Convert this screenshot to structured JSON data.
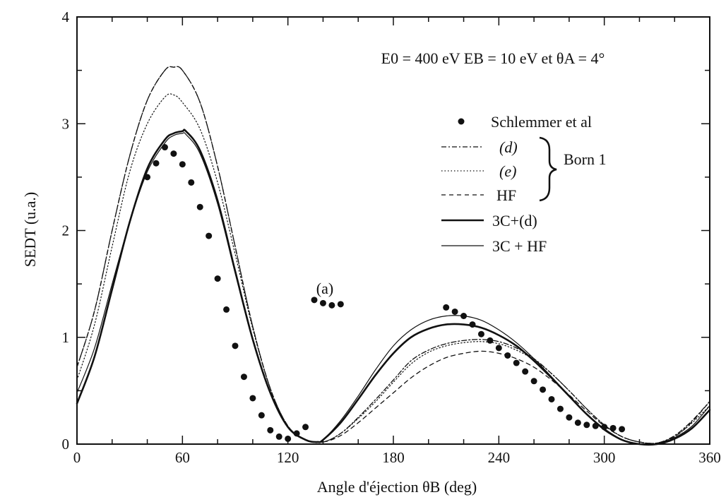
{
  "chart_data": {
    "type": "line",
    "title": "",
    "xlabel": "Angle d'éjection  θB (deg)",
    "ylabel": "SEDT (u.a.)",
    "xlim": [
      0,
      360
    ],
    "ylim": [
      0,
      4
    ],
    "xticks": [
      0,
      60,
      120,
      180,
      240,
      300,
      360
    ],
    "xtick_labels": [
      "0",
      "60",
      "120",
      "180",
      "240",
      "300",
      "360"
    ],
    "yticks": [
      0,
      1,
      2,
      3,
      4
    ],
    "ytick_labels": [
      "0",
      "1",
      "2",
      "3",
      "4"
    ],
    "grid": false,
    "legend_position": "top-right",
    "annotations": {
      "conditions": "E0 = 400 eV   EB = 10 eV   et   θA =  4°",
      "panel": "(a)",
      "bracket_label": "Born 1"
    },
    "legend_labels": {
      "exp": "Schlemmer et al",
      "d": "(d)",
      "e": "(e)",
      "hf": "HF",
      "c3d": "3C+(d)",
      "c3hf": "3C + HF"
    },
    "series": [
      {
        "name": "Schlemmer et al",
        "style": "markers",
        "x": [
          40,
          45,
          50,
          55,
          60,
          65,
          70,
          75,
          80,
          85,
          90,
          95,
          100,
          105,
          110,
          115,
          120,
          125,
          130,
          135,
          140,
          145,
          150,
          210,
          215,
          220,
          225,
          230,
          235,
          240,
          245,
          250,
          255,
          260,
          265,
          270,
          275,
          280,
          285,
          290,
          295,
          300,
          305,
          310
        ],
        "y": [
          2.5,
          2.63,
          2.78,
          2.72,
          2.62,
          2.45,
          2.22,
          1.95,
          1.55,
          1.26,
          0.92,
          0.63,
          0.43,
          0.27,
          0.13,
          0.07,
          0.05,
          0.1,
          0.16,
          1.35,
          1.32,
          1.3,
          1.31,
          1.28,
          1.24,
          1.2,
          1.12,
          1.03,
          0.97,
          0.9,
          0.83,
          0.76,
          0.68,
          0.59,
          0.51,
          0.42,
          0.33,
          0.25,
          0.2,
          0.18,
          0.17,
          0.16,
          0.15,
          0.14
        ]
      },
      {
        "name": "(d)",
        "style": "dash-dot",
        "x": [
          0,
          10,
          20,
          30,
          40,
          50,
          55,
          60,
          70,
          80,
          90,
          100,
          110,
          120,
          130,
          140,
          150,
          160,
          170,
          180,
          190,
          200,
          210,
          220,
          230,
          240,
          250,
          260,
          270,
          280,
          290,
          300,
          310,
          320,
          330,
          340,
          350,
          360
        ],
        "y": [
          0.72,
          1.25,
          2.0,
          2.7,
          3.22,
          3.5,
          3.53,
          3.5,
          3.2,
          2.6,
          1.85,
          1.1,
          0.52,
          0.17,
          0.04,
          0.02,
          0.1,
          0.25,
          0.42,
          0.6,
          0.78,
          0.88,
          0.94,
          0.97,
          0.98,
          0.96,
          0.9,
          0.8,
          0.66,
          0.5,
          0.33,
          0.18,
          0.07,
          0.02,
          0.01,
          0.08,
          0.22,
          0.4
        ]
      },
      {
        "name": "(e)",
        "style": "dotted",
        "x": [
          0,
          10,
          20,
          30,
          40,
          50,
          55,
          60,
          70,
          80,
          90,
          100,
          110,
          120,
          130,
          140,
          150,
          160,
          170,
          180,
          190,
          200,
          210,
          220,
          230,
          240,
          250,
          260,
          270,
          280,
          290,
          300,
          310,
          320,
          330,
          340,
          350,
          360
        ],
        "y": [
          0.6,
          1.12,
          1.85,
          2.55,
          3.0,
          3.25,
          3.27,
          3.2,
          2.95,
          2.45,
          1.78,
          1.08,
          0.52,
          0.17,
          0.04,
          0.02,
          0.1,
          0.24,
          0.4,
          0.58,
          0.75,
          0.86,
          0.92,
          0.95,
          0.96,
          0.94,
          0.88,
          0.79,
          0.66,
          0.5,
          0.33,
          0.18,
          0.07,
          0.02,
          0.01,
          0.07,
          0.2,
          0.36
        ]
      },
      {
        "name": "HF",
        "style": "dashed",
        "x": [
          0,
          10,
          20,
          30,
          40,
          50,
          55,
          60,
          70,
          80,
          90,
          100,
          110,
          120,
          130,
          140,
          150,
          160,
          170,
          180,
          190,
          200,
          210,
          220,
          230,
          240,
          250,
          260,
          270,
          280,
          290,
          300,
          310,
          320,
          330,
          340,
          350,
          360
        ],
        "y": [
          0.72,
          1.25,
          2.0,
          2.7,
          3.22,
          3.5,
          3.53,
          3.5,
          3.2,
          2.6,
          1.85,
          1.1,
          0.52,
          0.17,
          0.04,
          0.02,
          0.08,
          0.2,
          0.34,
          0.48,
          0.62,
          0.73,
          0.81,
          0.85,
          0.87,
          0.85,
          0.8,
          0.72,
          0.6,
          0.46,
          0.31,
          0.17,
          0.07,
          0.02,
          0.01,
          0.07,
          0.21,
          0.4
        ]
      },
      {
        "name": "3C+(d)",
        "style": "solid-thick",
        "x": [
          0,
          10,
          20,
          30,
          40,
          50,
          55,
          60,
          62,
          70,
          80,
          90,
          100,
          110,
          120,
          130,
          137,
          140,
          150,
          160,
          170,
          180,
          190,
          200,
          210,
          220,
          230,
          240,
          250,
          260,
          270,
          280,
          290,
          300,
          310,
          320,
          330,
          340,
          350,
          360
        ],
        "y": [
          0.38,
          0.82,
          1.45,
          2.08,
          2.58,
          2.85,
          2.91,
          2.93,
          2.93,
          2.75,
          2.28,
          1.62,
          0.98,
          0.48,
          0.16,
          0.04,
          0.02,
          0.04,
          0.2,
          0.42,
          0.65,
          0.85,
          1.0,
          1.08,
          1.12,
          1.12,
          1.09,
          1.02,
          0.92,
          0.78,
          0.62,
          0.45,
          0.28,
          0.14,
          0.04,
          0.0,
          0.0,
          0.05,
          0.15,
          0.32
        ]
      },
      {
        "name": "3C + HF",
        "style": "solid-thin",
        "x": [
          0,
          10,
          20,
          30,
          40,
          50,
          55,
          60,
          62,
          70,
          80,
          90,
          100,
          110,
          120,
          130,
          137,
          140,
          150,
          160,
          170,
          180,
          190,
          200,
          210,
          220,
          230,
          240,
          250,
          260,
          270,
          280,
          290,
          300,
          310,
          320,
          330,
          340,
          350,
          360
        ],
        "y": [
          0.48,
          0.9,
          1.5,
          2.08,
          2.55,
          2.82,
          2.89,
          2.91,
          2.9,
          2.72,
          2.25,
          1.6,
          0.97,
          0.48,
          0.16,
          0.04,
          0.02,
          0.04,
          0.22,
          0.45,
          0.7,
          0.92,
          1.07,
          1.16,
          1.2,
          1.2,
          1.16,
          1.07,
          0.95,
          0.8,
          0.63,
          0.45,
          0.28,
          0.13,
          0.04,
          0.0,
          0.0,
          0.06,
          0.17,
          0.36
        ]
      }
    ]
  }
}
